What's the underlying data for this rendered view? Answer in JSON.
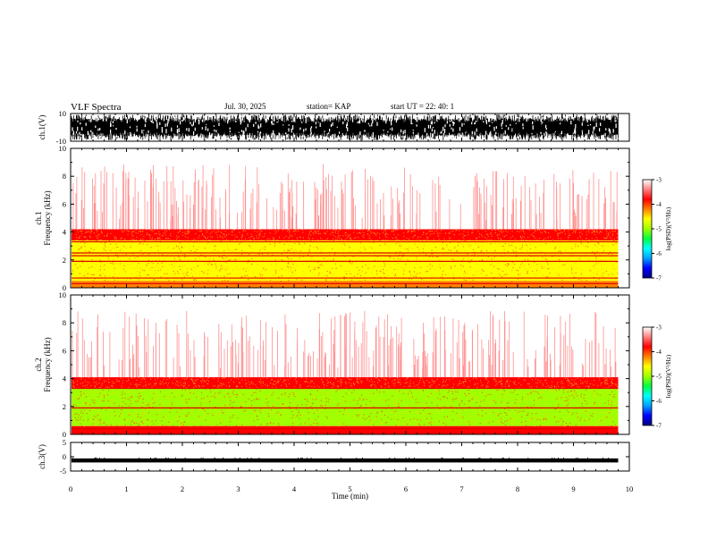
{
  "header": {
    "title": "VLF Spectra",
    "date": "Jul. 30, 2025",
    "station": "station= KAP",
    "start": "start  UT =   22: 40: 1"
  },
  "chart_data": [
    {
      "type": "line",
      "panel": "ch1-waveform",
      "ylabel": "ch.1(V)",
      "ylim": [
        -10,
        10
      ],
      "yticks": [
        "10",
        "-10"
      ],
      "description_values": "dense waveform oscillating between about -10 and 10 V"
    },
    {
      "type": "heatmap",
      "panel": "ch1-spectrogram",
      "ylabel": "ch.1\nFrequency (kHz)",
      "ylim": [
        0,
        10
      ],
      "yticks": [
        "0",
        "2",
        "4",
        "6",
        "8",
        "10"
      ],
      "bands_khz": [
        {
          "from": 0.0,
          "to": 0.5,
          "level": -4.2
        },
        {
          "from": 0.5,
          "to": 3.4,
          "level": -4.8
        },
        {
          "from": 3.4,
          "to": 4.2,
          "level": -4.0
        },
        {
          "from": 4.2,
          "to": 10.0,
          "level": -3.2
        }
      ],
      "lines_khz": [
        0.3,
        0.7,
        1.9,
        2.3,
        2.5,
        3.3
      ]
    },
    {
      "type": "heatmap",
      "panel": "ch2-spectrogram",
      "ylabel": "ch.2\nFrequency (kHz)",
      "ylim": [
        0,
        10
      ],
      "yticks": [
        "0",
        "2",
        "4",
        "6",
        "8",
        "10"
      ],
      "bands_khz": [
        {
          "from": 0.0,
          "to": 0.6,
          "level": -4.0
        },
        {
          "from": 0.6,
          "to": 3.3,
          "level": -5.0
        },
        {
          "from": 3.3,
          "to": 4.1,
          "level": -4.0
        },
        {
          "from": 4.1,
          "to": 10.0,
          "level": -3.2
        }
      ],
      "lines_khz": [
        0.4,
        1.9,
        3.3
      ]
    },
    {
      "type": "line",
      "panel": "ch3-waveform",
      "ylabel": "ch.3(V)",
      "ylim": [
        -5,
        5
      ],
      "yticks": [
        "5",
        "0",
        "-5"
      ],
      "band": [
        -2.0,
        -0.6
      ]
    }
  ],
  "xaxis": {
    "label": "Time (min)",
    "range": [
      0,
      10
    ],
    "data_end": 9.8,
    "ticks": [
      "0",
      "1",
      "2",
      "3",
      "4",
      "5",
      "6",
      "7",
      "8",
      "9",
      "10"
    ]
  },
  "colorbar": {
    "label": "log(PSD)(V²/Hz)",
    "range": [
      -7,
      -3
    ],
    "ticks": [
      "-3",
      "-4",
      "-5",
      "-6",
      "-7"
    ],
    "colors": [
      "#000080",
      "#0000ff",
      "#00a0ff",
      "#00ffff",
      "#00ff40",
      "#a0ff00",
      "#ffff00",
      "#ff8000",
      "#ff0000",
      "#ff8080",
      "#ffffff"
    ]
  }
}
